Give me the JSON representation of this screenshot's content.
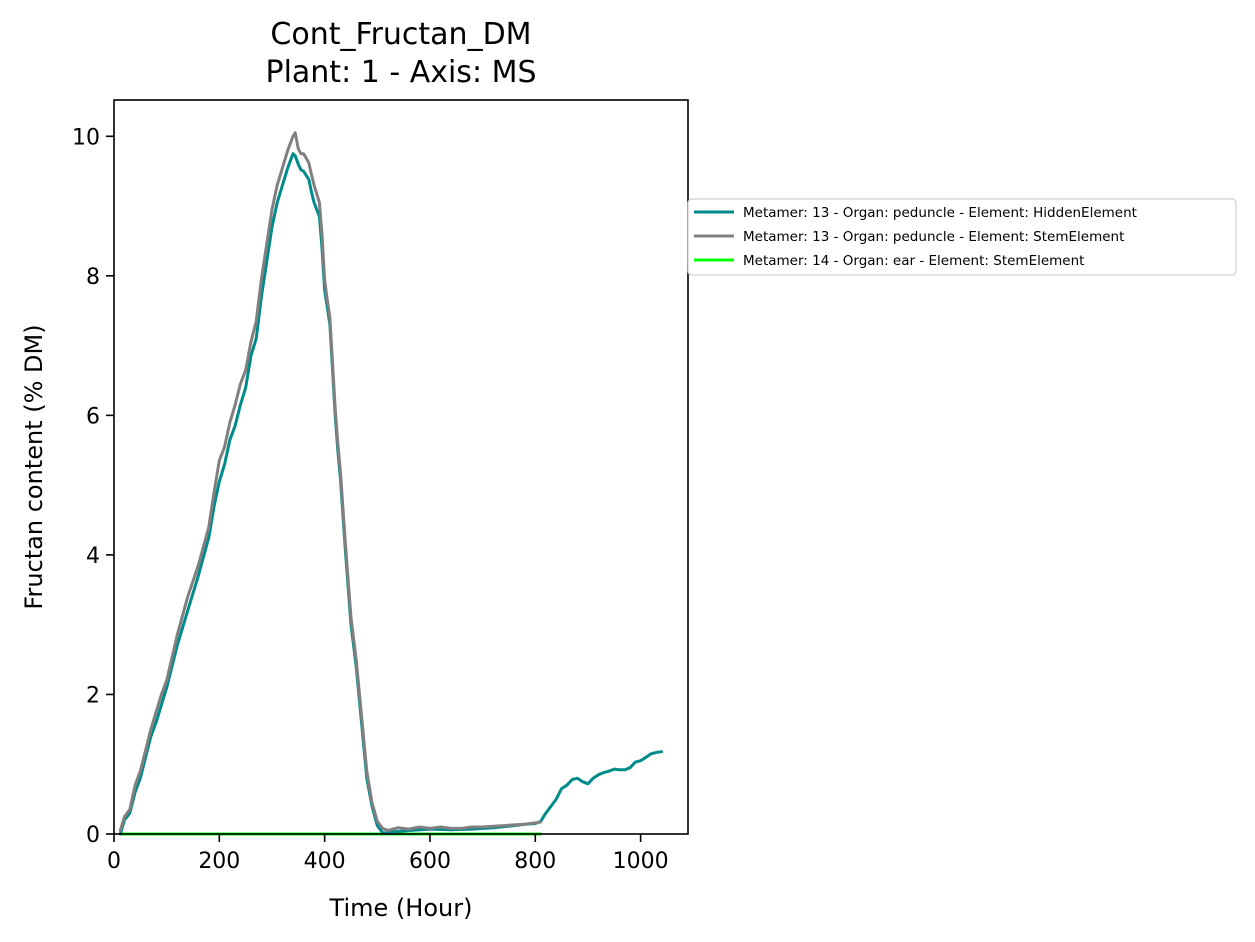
{
  "chart_data": {
    "type": "line",
    "title": "Cont_Fructan_DM",
    "subtitle": "Plant: 1 - Axis: MS",
    "xlabel": "Time (Hour)",
    "ylabel": "Fructan content (% DM)",
    "xlim": [
      0,
      1090
    ],
    "ylim": [
      0,
      10.52
    ],
    "xticks": [
      "0",
      "200",
      "400",
      "600",
      "800",
      "1000"
    ],
    "xtick_values": [
      0,
      200,
      400,
      600,
      800,
      1000
    ],
    "yticks": [
      "0",
      "2",
      "4",
      "6",
      "8",
      "10"
    ],
    "ytick_values": [
      0,
      2,
      4,
      6,
      8,
      10
    ],
    "grid": false,
    "legend_position": "right-outside",
    "series": [
      {
        "name": "Metamer: 13 - Organ: peduncle - Element: HiddenElement",
        "color": "#008B8B",
        "x": [
          12,
          20,
          30,
          40,
          50,
          60,
          70,
          80,
          90,
          100,
          120,
          140,
          160,
          180,
          190,
          200,
          210,
          220,
          230,
          240,
          250,
          260,
          270,
          280,
          290,
          300,
          310,
          320,
          330,
          340,
          344,
          350,
          355,
          360,
          370,
          375,
          380,
          390,
          395,
          400,
          405,
          410,
          420,
          425,
          430,
          440,
          450,
          460,
          470,
          480,
          490,
          500,
          510,
          520,
          530,
          560,
          600,
          640,
          680,
          720,
          760,
          780,
          800,
          810,
          820,
          830,
          840,
          850,
          860,
          870,
          880,
          890,
          900,
          910,
          920,
          930,
          940,
          950,
          960,
          970,
          980,
          990,
          1000,
          1010,
          1020,
          1030,
          1040
        ],
        "y": [
          0,
          0.2,
          0.3,
          0.6,
          0.8,
          1.1,
          1.4,
          1.6,
          1.85,
          2.1,
          2.7,
          3.2,
          3.7,
          4.25,
          4.7,
          5.05,
          5.3,
          5.65,
          5.85,
          6.15,
          6.4,
          6.85,
          7.1,
          7.7,
          8.2,
          8.7,
          9.05,
          9.3,
          9.55,
          9.75,
          9.72,
          9.6,
          9.52,
          9.5,
          9.38,
          9.2,
          9.05,
          8.85,
          8.4,
          7.8,
          7.55,
          7.3,
          6.0,
          5.5,
          5.1,
          4.0,
          3.0,
          2.4,
          1.6,
          0.8,
          0.4,
          0.12,
          0.02,
          0.01,
          0.03,
          0.05,
          0.07,
          0.06,
          0.07,
          0.09,
          0.12,
          0.14,
          0.15,
          0.18,
          0.3,
          0.4,
          0.5,
          0.65,
          0.7,
          0.78,
          0.8,
          0.75,
          0.72,
          0.8,
          0.85,
          0.88,
          0.9,
          0.93,
          0.92,
          0.92,
          0.95,
          1.03,
          1.05,
          1.1,
          1.15,
          1.17,
          1.18
        ]
      },
      {
        "name": "Metamer: 13 - Organ: peduncle - Element: StemElement",
        "color": "#808080",
        "x": [
          12,
          20,
          30,
          40,
          50,
          60,
          70,
          80,
          90,
          100,
          120,
          140,
          160,
          180,
          190,
          200,
          210,
          220,
          230,
          240,
          250,
          260,
          270,
          280,
          290,
          300,
          310,
          320,
          330,
          340,
          344,
          350,
          355,
          360,
          370,
          375,
          380,
          390,
          395,
          400,
          405,
          410,
          420,
          425,
          430,
          440,
          450,
          460,
          470,
          480,
          490,
          500,
          510,
          520,
          540,
          560,
          580,
          600,
          620,
          640,
          660,
          680,
          700,
          720,
          740,
          760,
          780,
          800,
          810
        ],
        "y": [
          0.05,
          0.25,
          0.35,
          0.7,
          0.9,
          1.2,
          1.5,
          1.75,
          2.0,
          2.2,
          2.85,
          3.4,
          3.85,
          4.4,
          4.9,
          5.35,
          5.55,
          5.9,
          6.15,
          6.45,
          6.65,
          7.05,
          7.35,
          7.95,
          8.45,
          8.95,
          9.3,
          9.55,
          9.8,
          10.0,
          10.05,
          9.82,
          9.75,
          9.75,
          9.62,
          9.45,
          9.3,
          9.05,
          8.6,
          7.95,
          7.65,
          7.4,
          6.1,
          5.6,
          5.2,
          4.1,
          3.1,
          2.5,
          1.7,
          0.9,
          0.45,
          0.18,
          0.08,
          0.05,
          0.09,
          0.07,
          0.1,
          0.08,
          0.1,
          0.08,
          0.08,
          0.1,
          0.1,
          0.11,
          0.12,
          0.13,
          0.14,
          0.16,
          0.17
        ]
      },
      {
        "name": "Metamer: 14 - Organ: ear - Element: StemElement",
        "color": "#00FF00",
        "x": [
          12,
          810
        ],
        "y": [
          0,
          0
        ]
      }
    ]
  }
}
